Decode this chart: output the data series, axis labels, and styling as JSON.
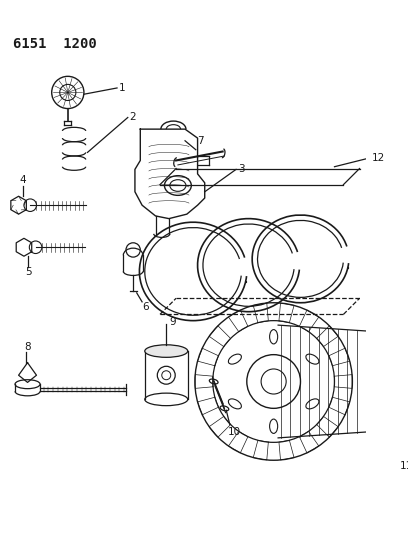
{
  "title": "6151  1200",
  "bg_color": "#ffffff",
  "line_color": "#1a1a1a",
  "fig_width": 4.08,
  "fig_height": 5.33,
  "dpi": 100
}
